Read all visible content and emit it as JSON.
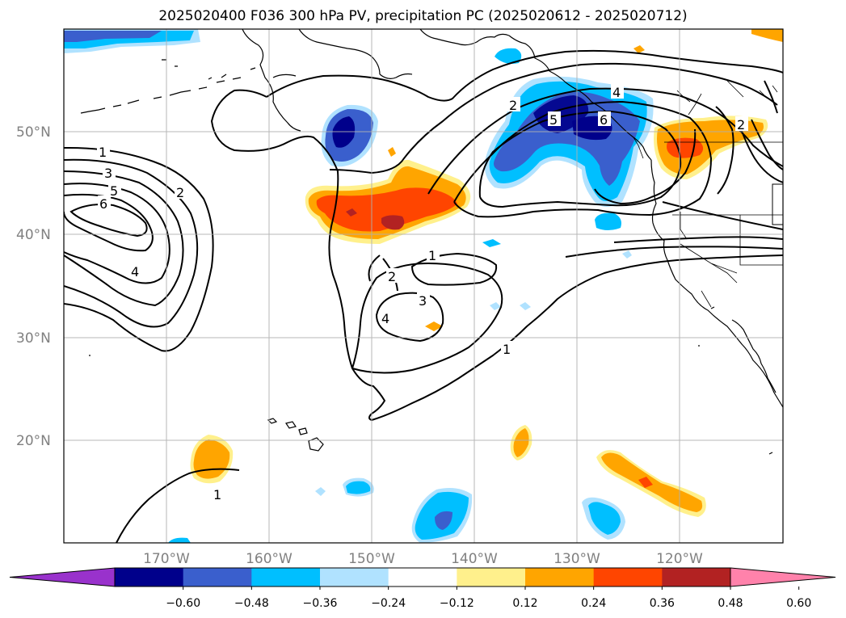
{
  "title": "2025020400 F036 300 hPa PV, precipitation PC (2025020612 - 2025020712)",
  "map": {
    "lat_labels": [
      "50°N",
      "40°N",
      "30°N",
      "20°N"
    ],
    "lon_labels": [
      "170°W",
      "160°W",
      "150°W",
      "140°W",
      "130°W",
      "120°W"
    ]
  },
  "colorbar": {
    "labels": [
      "−0.60",
      "−0.48",
      "−0.36",
      "−0.24",
      "−0.12",
      "0.12",
      "0.24",
      "0.36",
      "0.48",
      "0.60"
    ],
    "colors": [
      "#9932cc",
      "#00008b",
      "#3a5fcd",
      "#00bfff",
      "#b0e2ff",
      "#ffffff",
      "#fff08c",
      "#ffa500",
      "#ff4500",
      "#b22222",
      "#ff82ab"
    ]
  },
  "pv_contour_labels": [
    "1",
    "2",
    "3",
    "4",
    "5",
    "6"
  ],
  "colors": {
    "grid": "#b0b0b0",
    "coast": "#000000",
    "contour": "#000000"
  }
}
